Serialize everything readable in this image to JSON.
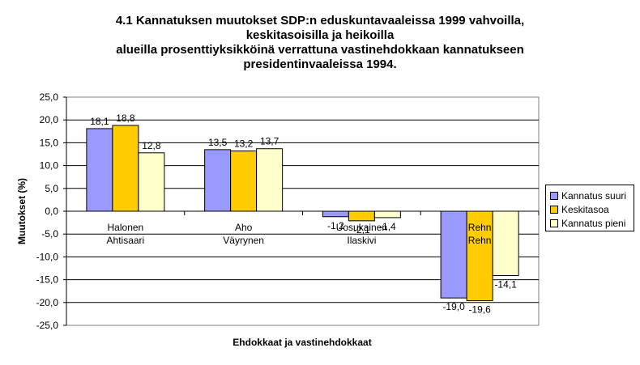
{
  "chart_data": {
    "type": "bar",
    "title_lines": [
      "4.1 Kannatuksen muutokset SDP:n eduskuntavaaleissa 1999 vahvoilla,",
      "keskitasoisilla ja heikoilla",
      "alueilla prosenttiyksikköinä verrattuna vastinehdokkaan kannatukseen",
      "presidentinvaaleissa 1994."
    ],
    "xlabel": "Ehdokkaat ja vastinehdokkaat",
    "ylabel": "Muutokset (%)",
    "ylim": [
      -25,
      25
    ],
    "ytick_step": 5,
    "ytick_labels": [
      "25,0",
      "20,0",
      "15,0",
      "10,0",
      "5,0",
      "0,0",
      "-5,0",
      "-10,0",
      "-15,0",
      "-20,0",
      "-25,0"
    ],
    "categories": [
      {
        "line1": "Halonen",
        "line2": "Ahtisaari"
      },
      {
        "line1": "Aho",
        "line2": "Väyrynen"
      },
      {
        "line1": "Uosukainen",
        "line2": "Ilaskivi"
      },
      {
        "line1": "Rehn",
        "line2": "Rehn"
      }
    ],
    "series": [
      {
        "name": "Kannatus suuri",
        "color": "#9999ff",
        "values": [
          18.1,
          13.5,
          -1.2,
          -19.0
        ],
        "labels": [
          "18,1",
          "13,5",
          "-1,2",
          "-19,0"
        ]
      },
      {
        "name": "Keskitasoa",
        "color": "#ffcc00",
        "values": [
          18.8,
          13.2,
          -2.1,
          -19.6
        ],
        "labels": [
          "18,8",
          "13,2",
          "-2,1",
          "-19,6"
        ]
      },
      {
        "name": "Kannatus pieni",
        "color": "#ffffcc",
        "values": [
          12.8,
          13.7,
          -1.4,
          -14.1
        ],
        "labels": [
          "12,8",
          "13,7",
          "-1,4",
          "-14,1"
        ]
      }
    ],
    "grid": true,
    "legend_position": "right"
  }
}
